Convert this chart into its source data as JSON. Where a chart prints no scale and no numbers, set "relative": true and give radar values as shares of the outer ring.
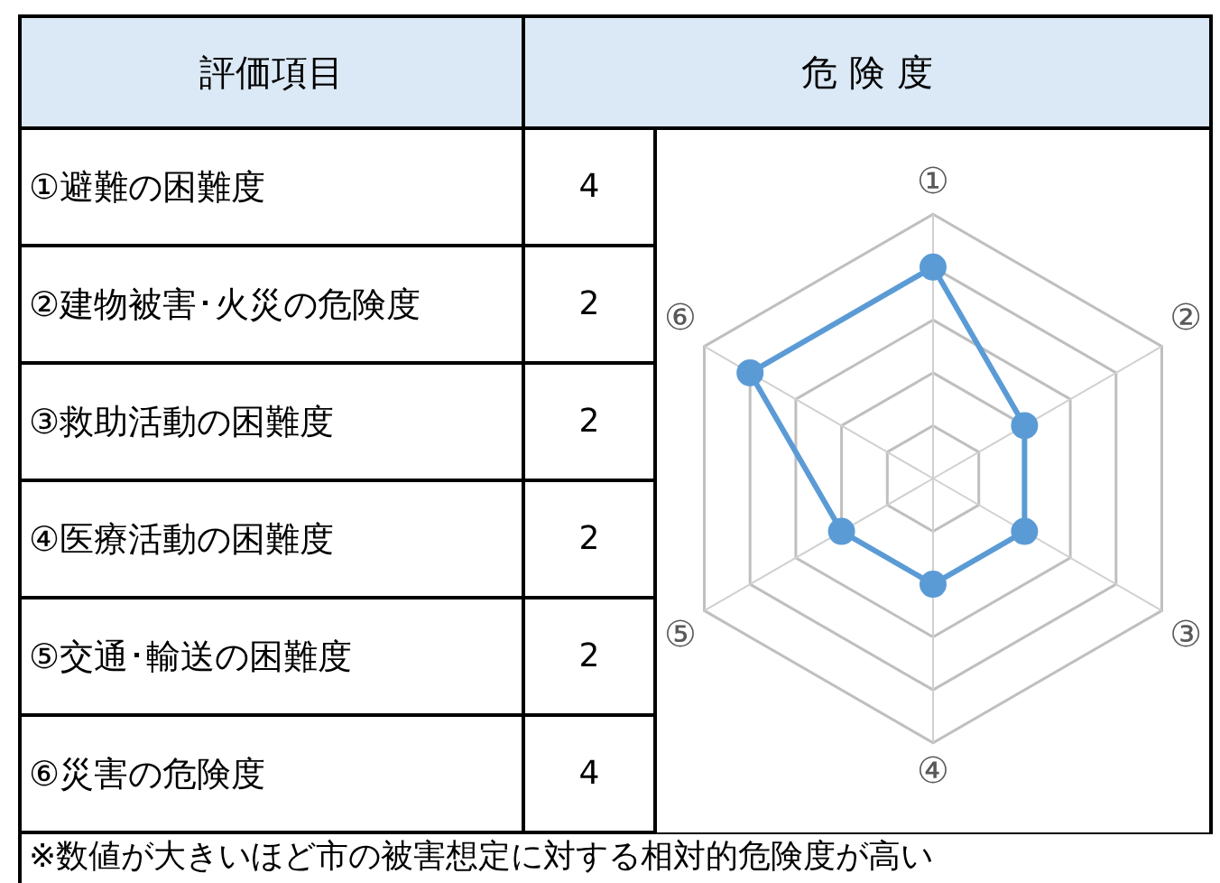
{
  "chart_data": [
    {
      "type": "other",
      "categories": [
        "①避難の困難度",
        "②建物被害･火災の危険度",
        "③救助活動の困難度",
        "④医療活動の困難度",
        "⑤交通･輸送の困難度",
        "⑥災害の危険度"
      ],
      "values": [
        4,
        2,
        2,
        2,
        2,
        4
      ],
      "data_labels": true,
      "annotations": [
        "評価項目",
        "危 険 度",
        "※数値が大きいほど市の被害想定に対する相対的危険度が高い"
      ]
    },
    {
      "type": "radar",
      "relative": true,
      "categories": [
        "①",
        "②",
        "③",
        "④",
        "⑤",
        "⑥"
      ],
      "series": [
        {
          "color": "#5b9bd5",
          "values": [
            0.8,
            0.4,
            0.4,
            0.4,
            0.4,
            0.8
          ]
        }
      ],
      "grid": true,
      "marker": "circle",
      "legend": false
    }
  ]
}
